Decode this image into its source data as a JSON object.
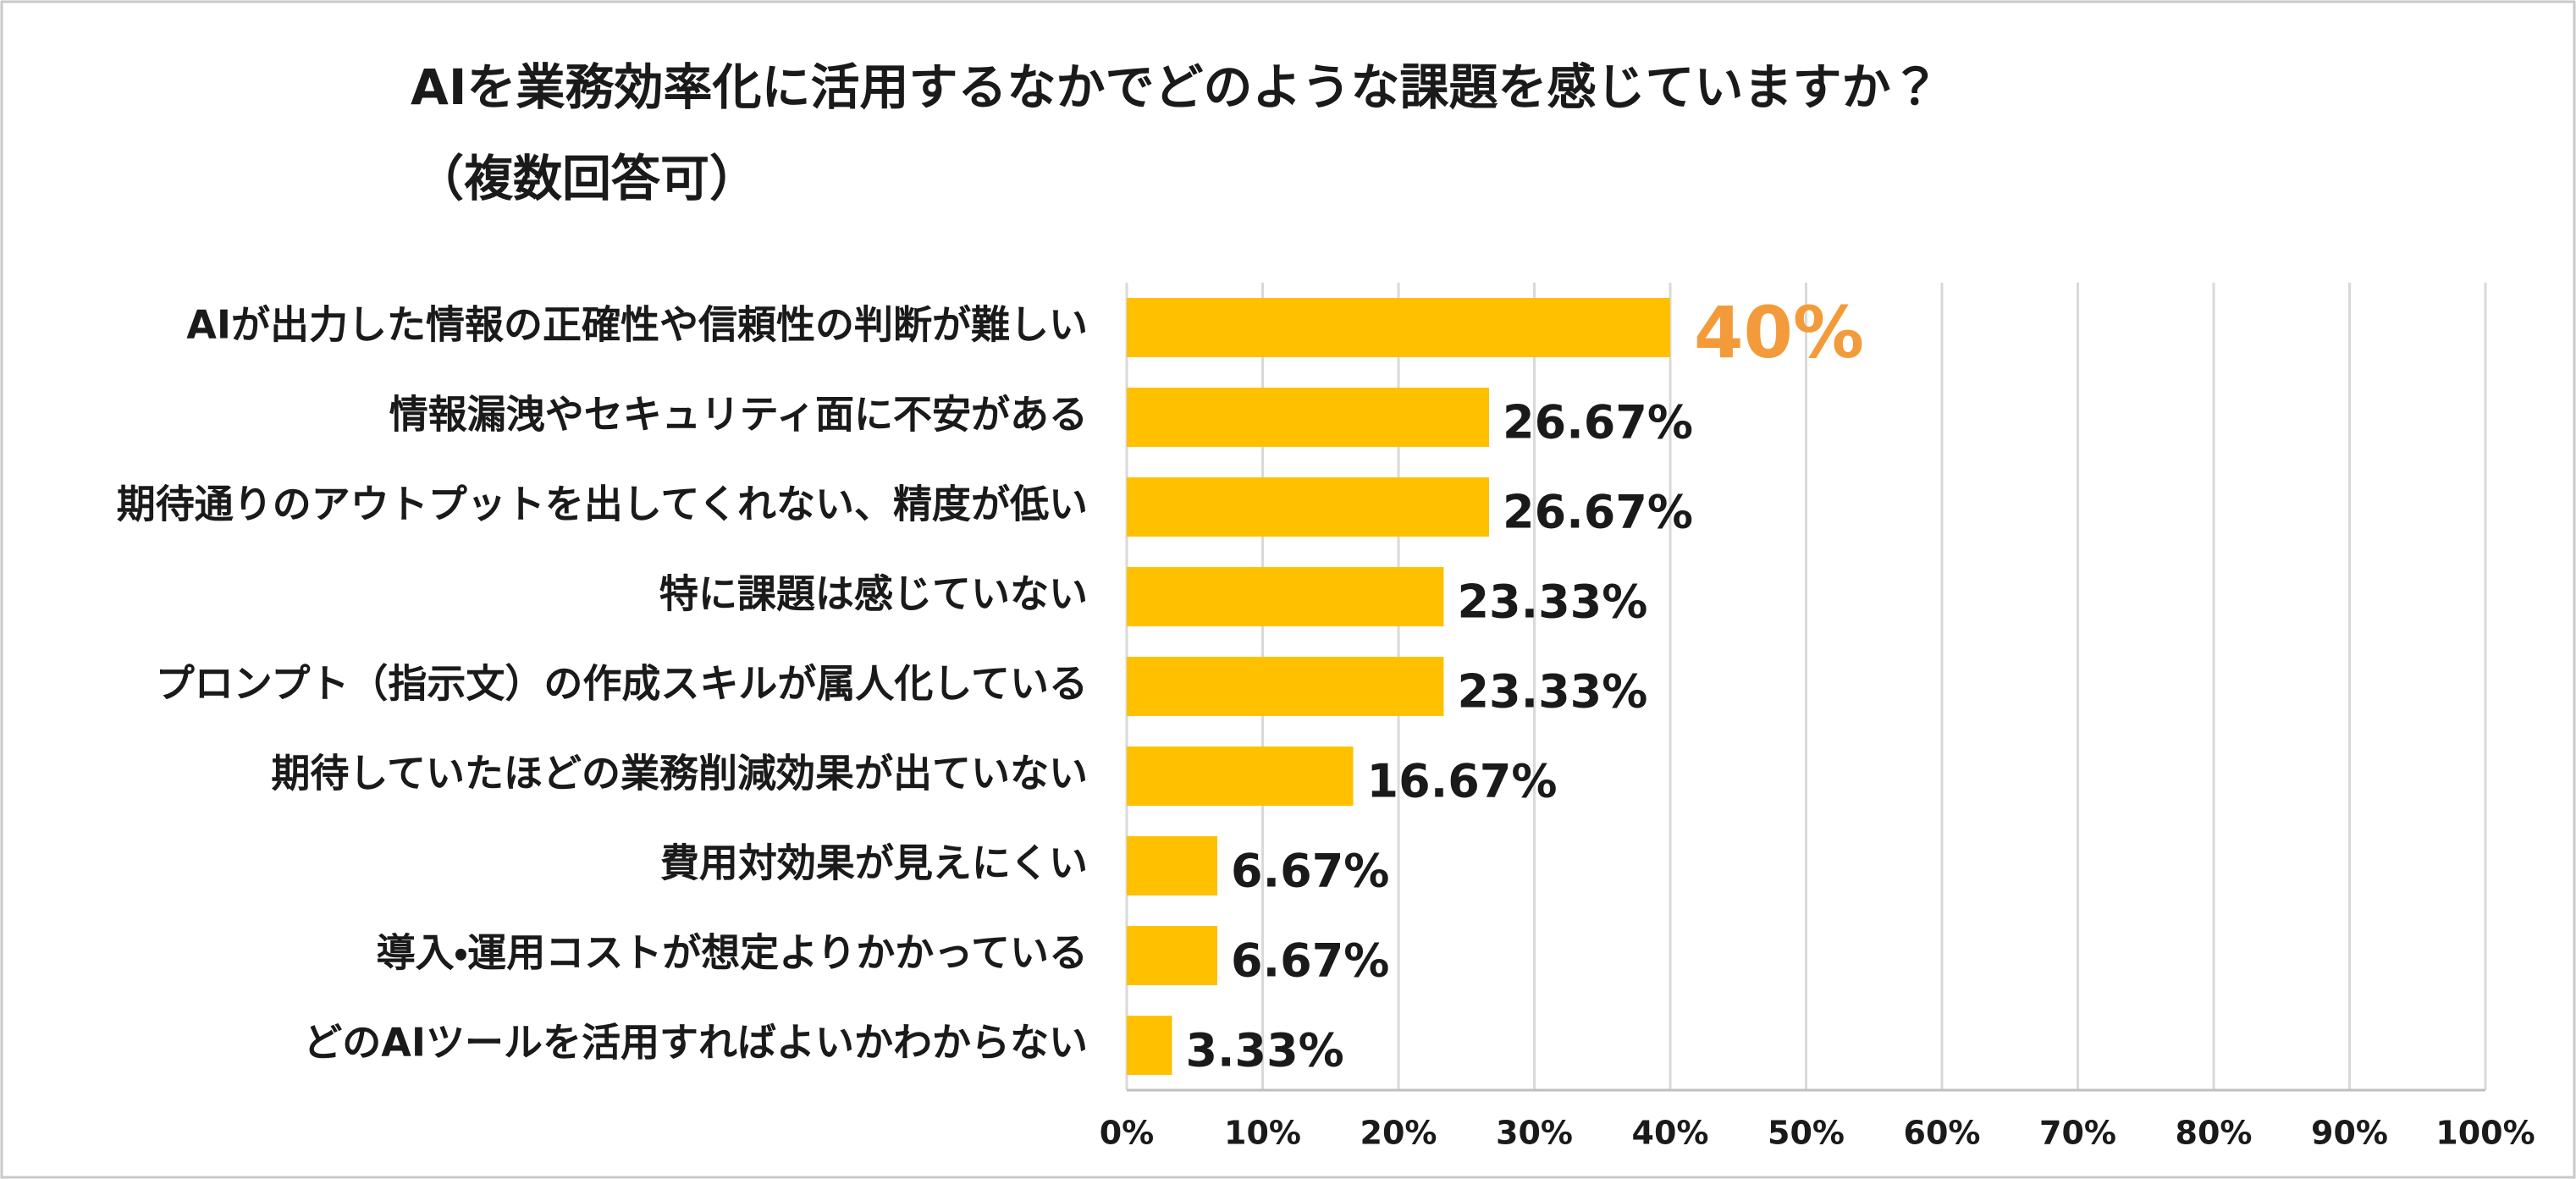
{
  "chart_data": {
    "type": "barh",
    "title": "AIを業務効率化に活用するなかでどのような課題を感じていますか？",
    "subtitle": "（複数回答可）",
    "categories": [
      "AIが出力した情報の正確性や信頼性の判断が難しい",
      "情報漏洩やセキュリティ面に不安がある",
      "期待通りのアウトプットを出してくれない、精度が低い",
      "特に課題は感じていない",
      "プロンプト（指示文）の作成スキルが属人化している",
      "期待していたほどの業務削減効果が出ていない",
      "費用対効果が見えにくい",
      "導入・運用コストが想定よりかかっている",
      "どのAIツールを活用すればよいかわからない"
    ],
    "values": [
      40,
      26.67,
      26.67,
      23.33,
      23.33,
      16.67,
      6.67,
      6.67,
      3.33
    ],
    "value_labels": [
      "40%",
      "26.67%",
      "26.67%",
      "23.33%",
      "23.33%",
      "16.67%",
      "6.67%",
      "6.67%",
      "3.33%"
    ],
    "color": "#ffc000",
    "value_label_color": "#1a1a1a",
    "highlight_index": 0,
    "highlight_color": "#f39b3a",
    "xlim": [
      0,
      100
    ],
    "xticks": [
      {
        "value": 0,
        "label": "0%"
      },
      {
        "value": 10,
        "label": "10%"
      },
      {
        "value": 20,
        "label": "20%"
      },
      {
        "value": 30,
        "label": "30%"
      },
      {
        "value": 40,
        "label": "40%"
      },
      {
        "value": 50,
        "label": "50%"
      },
      {
        "value": 60,
        "label": "60%"
      },
      {
        "value": 70,
        "label": "70%"
      },
      {
        "value": 80,
        "label": "80%"
      },
      {
        "value": 90,
        "label": "90%"
      },
      {
        "value": 100,
        "label": "100%"
      }
    ],
    "grid": true
  }
}
